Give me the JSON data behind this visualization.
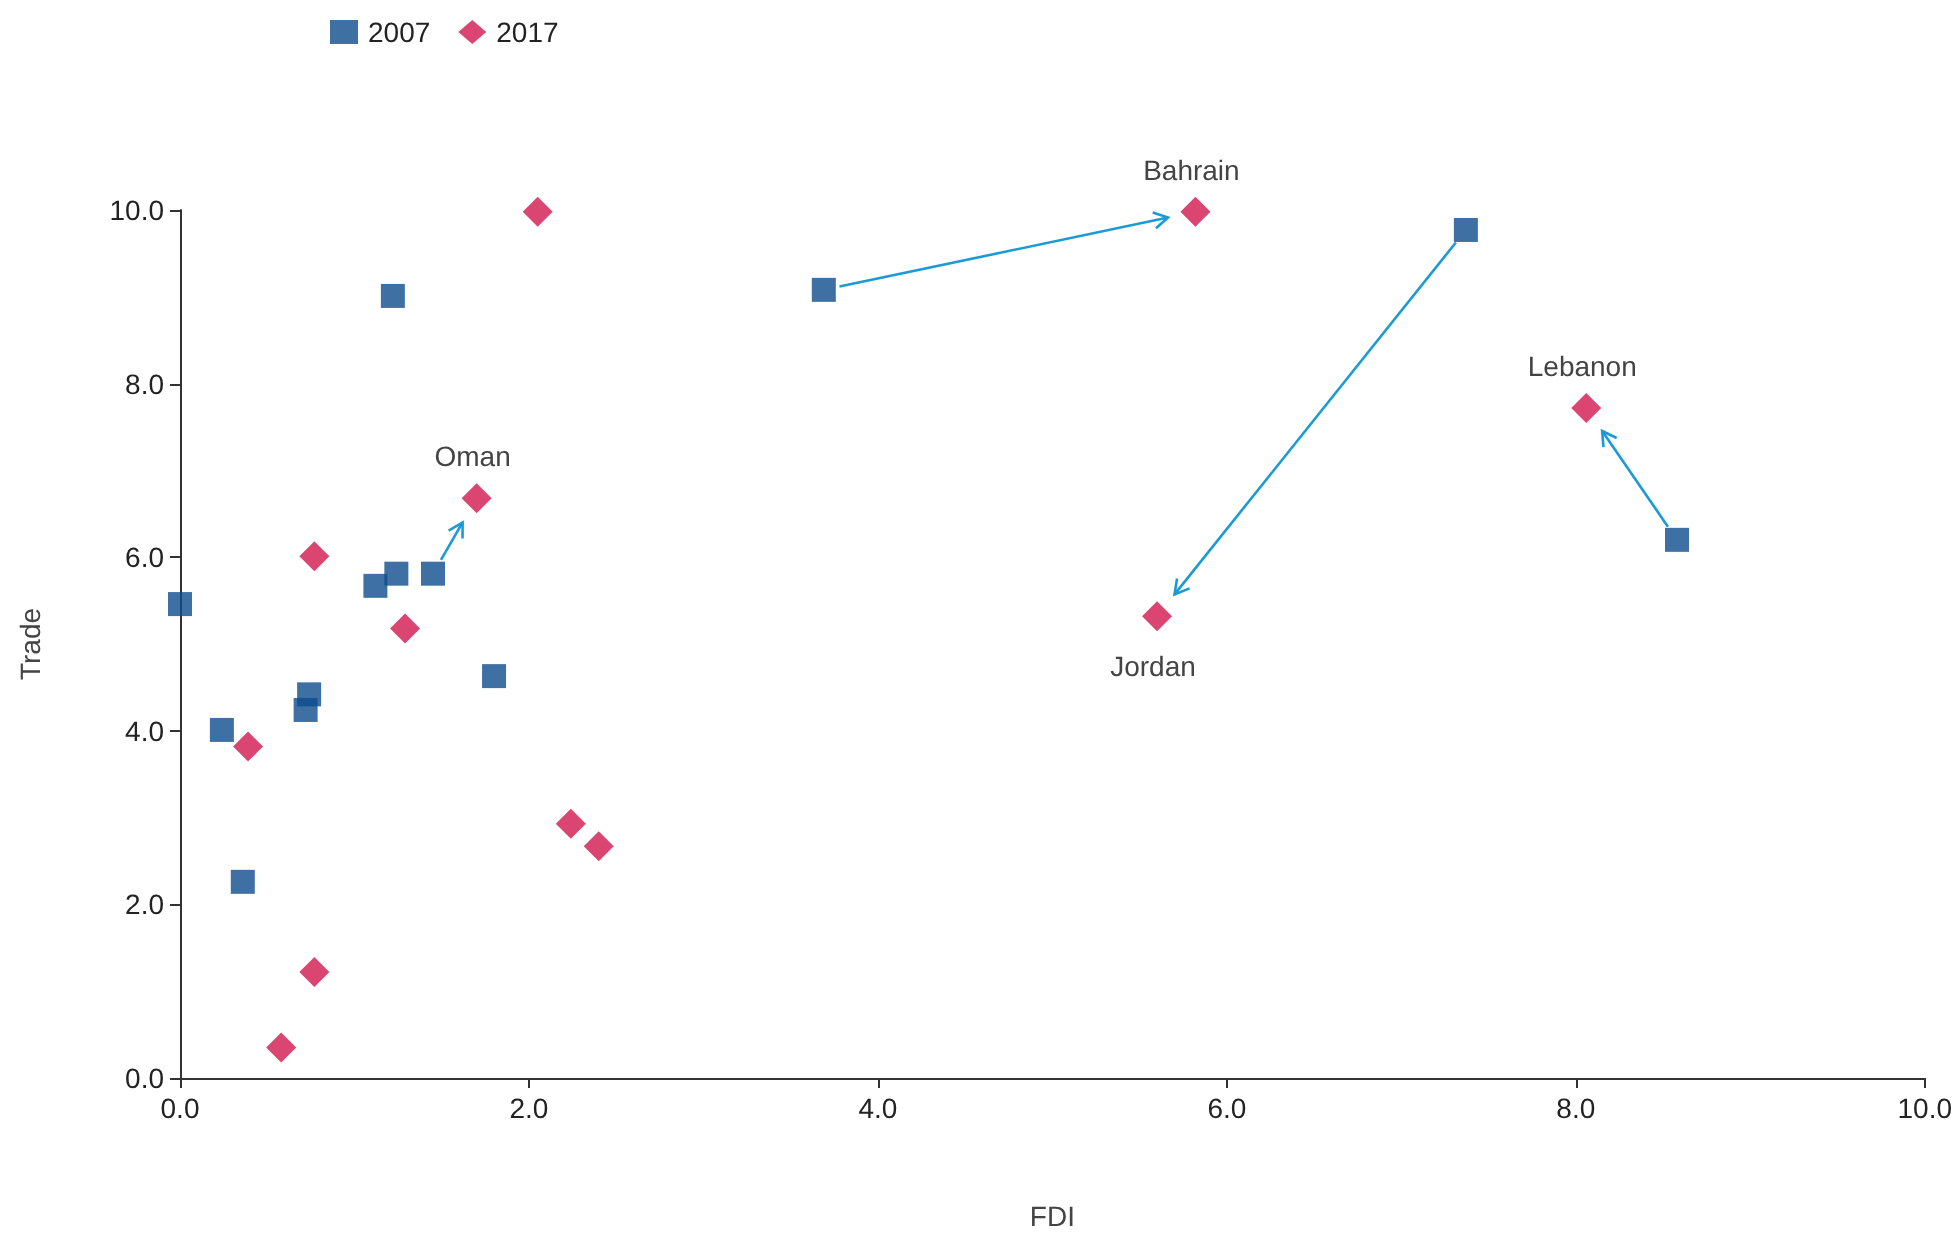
{
  "chart_data": {
    "type": "scatter",
    "xlabel": "FDI",
    "ylabel": "Trade",
    "series": [
      {
        "name": "2007",
        "color": "#0f4c8c",
        "marker": "square",
        "x": [
          0.0,
          0.24,
          0.36,
          0.72,
          0.74,
          1.12,
          1.24,
          1.22,
          1.45,
          3.69,
          7.37,
          8.58,
          1.8
        ],
        "values": [
          5.46,
          4.01,
          2.26,
          4.24,
          4.42,
          5.67,
          5.81,
          9.01,
          5.81,
          9.08,
          9.77,
          6.2,
          4.63
        ]
      },
      {
        "name": "2017",
        "color": "#d2164f",
        "marker": "diamond",
        "x": [
          0.39,
          0.58,
          0.77,
          0.77,
          1.29,
          2.05,
          2.24,
          2.4,
          1.7,
          5.82,
          5.6,
          8.06
        ],
        "values": [
          3.82,
          0.35,
          1.22,
          6.01,
          5.18,
          9.98,
          2.93,
          2.67,
          6.68,
          9.98,
          5.32,
          7.72
        ]
      }
    ],
    "annotations": [
      {
        "text": "Bahrain",
        "x": 5.82,
        "y": 9.98
      },
      {
        "text": "Oman",
        "x": 1.7,
        "y": 6.68
      },
      {
        "text": "Jordan",
        "x": 5.6,
        "y": 5.32
      },
      {
        "text": "Lebanon",
        "x": 8.06,
        "y": 7.72
      }
    ],
    "xlim": [
      0,
      10
    ],
    "xticks": [
      {
        "value": 0,
        "label": "0.0"
      },
      {
        "value": 2,
        "label": "2.0"
      },
      {
        "value": 4,
        "label": "4.0"
      },
      {
        "value": 6,
        "label": "6.0"
      },
      {
        "value": 8,
        "label": "8.0"
      },
      {
        "value": 10,
        "label": "10.0"
      }
    ],
    "ylim": [
      0,
      10
    ],
    "yticks": [
      {
        "value": 0,
        "label": "0.0"
      },
      {
        "value": 2,
        "label": "2.0"
      },
      {
        "value": 4,
        "label": "4.0"
      },
      {
        "value": 6,
        "label": "6.0"
      },
      {
        "value": 8,
        "label": "8.0"
      },
      {
        "value": 10,
        "label": "10.0"
      }
    ],
    "grid": false,
    "legend": "top left"
  }
}
